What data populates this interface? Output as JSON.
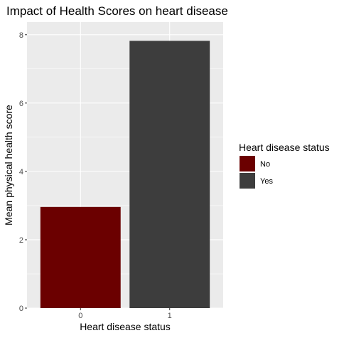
{
  "chart_data": {
    "type": "bar",
    "title": "Impact of Health Scores on heart disease",
    "xlabel": "Heart disease status",
    "ylabel": "Mean physical health score",
    "categories": [
      "0",
      "1"
    ],
    "values": [
      2.96,
      7.82
    ],
    "ylim": [
      0,
      8.37
    ],
    "yticks": [
      0,
      2,
      4,
      6,
      8
    ],
    "grid": true,
    "legend": {
      "title": "Heart disease status",
      "placement": "right",
      "entries": [
        {
          "label": "No",
          "color": "#6b0000"
        },
        {
          "label": "Yes",
          "color": "#3d3d3d"
        }
      ]
    },
    "colors": {
      "panel_background": "#ebebeb",
      "gridline": "#ffffff",
      "tick_mark": "#333333"
    }
  }
}
